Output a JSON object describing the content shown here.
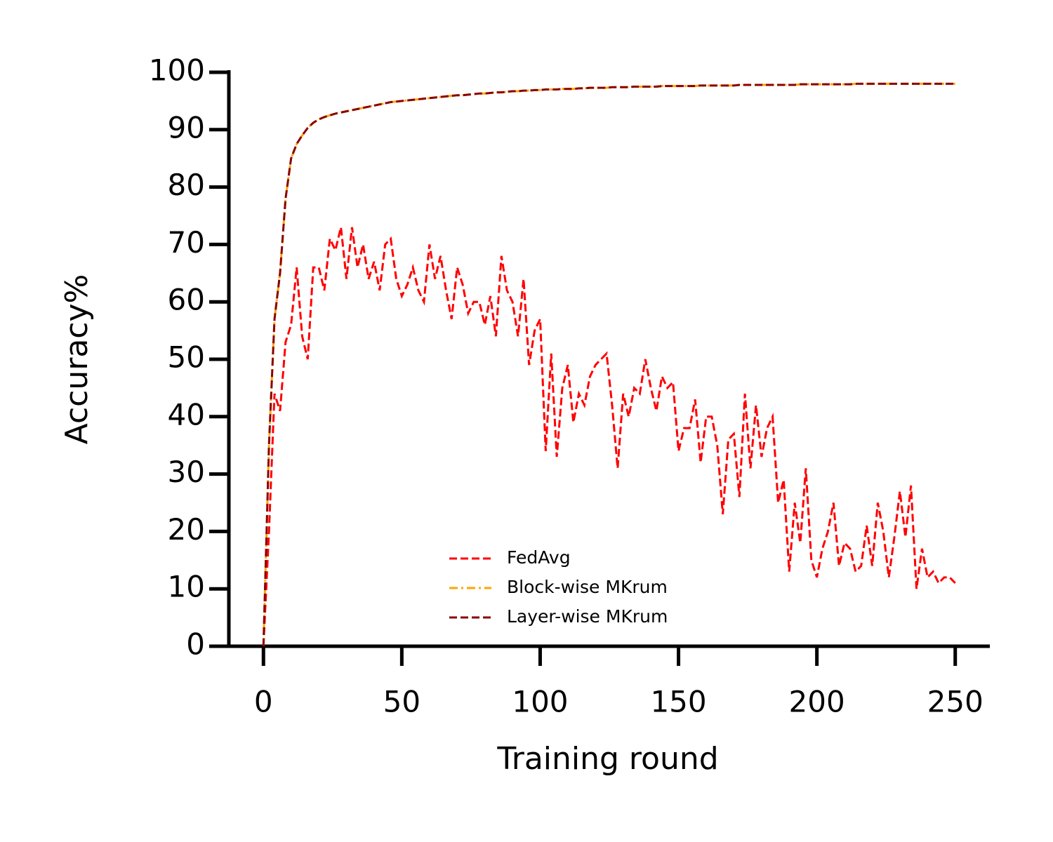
{
  "chart_data": {
    "type": "line",
    "xlabel": "Training round",
    "ylabel": "Accuracy%",
    "xlim": [
      -12.5,
      262.5
    ],
    "xticks": [
      0,
      50,
      100,
      150,
      200,
      250
    ],
    "ylim": [
      0,
      100
    ],
    "yticks": [
      0,
      10,
      20,
      30,
      40,
      50,
      60,
      70,
      80,
      90,
      100
    ],
    "legend": "lower center",
    "x": [
      0,
      2,
      4,
      6,
      8,
      10,
      12,
      14,
      16,
      18,
      20,
      22,
      24,
      26,
      28,
      30,
      32,
      34,
      36,
      38,
      40,
      42,
      44,
      46,
      48,
      50,
      52,
      54,
      56,
      58,
      60,
      62,
      64,
      66,
      68,
      70,
      72,
      74,
      76,
      78,
      80,
      82,
      84,
      86,
      88,
      90,
      92,
      94,
      96,
      98,
      100,
      102,
      104,
      106,
      108,
      110,
      112,
      114,
      116,
      118,
      120,
      122,
      124,
      126,
      128,
      130,
      132,
      134,
      136,
      138,
      140,
      142,
      144,
      146,
      148,
      150,
      152,
      154,
      156,
      158,
      160,
      162,
      164,
      166,
      168,
      170,
      172,
      174,
      176,
      178,
      180,
      182,
      184,
      186,
      188,
      190,
      192,
      194,
      196,
      198,
      200,
      202,
      204,
      206,
      208,
      210,
      212,
      214,
      216,
      218,
      220,
      222,
      224,
      226,
      228,
      230,
      232,
      234,
      236,
      238,
      240,
      242,
      244,
      246,
      248,
      250
    ],
    "series": [
      {
        "name": "FedAvg",
        "color": "#ff0000",
        "linestyle": "dashed",
        "values": [
          0,
          20,
          44,
          41,
          53,
          56,
          66,
          54,
          50,
          66,
          66,
          62,
          71,
          69,
          73,
          64,
          73,
          66,
          70,
          64,
          67,
          62,
          70,
          71,
          64,
          61,
          63,
          66,
          62,
          60,
          70,
          64,
          68,
          62,
          57,
          66,
          63,
          58,
          60,
          60,
          56,
          61,
          54,
          68,
          62,
          60,
          54,
          64,
          49,
          55,
          57,
          34,
          51,
          33,
          45,
          49,
          39,
          44,
          42,
          47,
          49,
          50,
          51,
          42,
          31,
          44,
          40,
          45,
          44,
          50,
          45,
          41,
          47,
          45,
          46,
          34,
          38,
          38,
          43,
          32,
          40,
          40,
          35,
          23,
          36,
          37,
          26,
          44,
          31,
          42,
          33,
          38,
          40,
          25,
          29,
          13,
          25,
          18,
          31,
          15,
          12,
          17,
          20,
          25,
          14,
          18,
          17,
          13,
          14,
          21,
          14,
          25,
          20,
          12,
          19,
          27,
          19,
          28,
          10,
          17,
          12,
          13,
          11,
          12,
          12,
          11
        ]
      },
      {
        "name": "Block-wise MKrum",
        "color": "#ffa500",
        "linestyle": "dashdot",
        "values": [
          0,
          35,
          57,
          65,
          78,
          85,
          87.5,
          89,
          90.3,
          91.2,
          91.8,
          92.2,
          92.5,
          92.8,
          93,
          93.2,
          93.4,
          93.6,
          93.8,
          94,
          94.2,
          94.4,
          94.6,
          94.8,
          94.9,
          95,
          95.1,
          95.2,
          95.3,
          95.4,
          95.5,
          95.6,
          95.7,
          95.8,
          95.9,
          96,
          96,
          96.1,
          96.2,
          96.3,
          96.3,
          96.4,
          96.5,
          96.5,
          96.6,
          96.7,
          96.7,
          96.8,
          96.8,
          96.9,
          96.9,
          97,
          97,
          97,
          97.1,
          97.1,
          97.1,
          97.2,
          97.2,
          97.3,
          97.3,
          97.3,
          97.3,
          97.4,
          97.4,
          97.4,
          97.4,
          97.5,
          97.5,
          97.5,
          97.5,
          97.5,
          97.6,
          97.6,
          97.6,
          97.6,
          97.6,
          97.6,
          97.6,
          97.7,
          97.7,
          97.7,
          97.7,
          97.7,
          97.7,
          97.7,
          97.8,
          97.8,
          97.8,
          97.8,
          97.8,
          97.8,
          97.8,
          97.8,
          97.8,
          97.8,
          97.8,
          97.9,
          97.9,
          97.9,
          97.9,
          97.9,
          97.9,
          97.9,
          97.9,
          97.9,
          97.9,
          98,
          98,
          98,
          98,
          98,
          98,
          98,
          98,
          98,
          98,
          98,
          98,
          98,
          98,
          98,
          98,
          98,
          98,
          98
        ]
      },
      {
        "name": "Layer-wise MKrum",
        "color": "#8b0000",
        "linestyle": "dashed",
        "values": [
          0,
          35,
          57,
          65,
          78,
          85,
          87.5,
          89,
          90.3,
          91.2,
          91.8,
          92.2,
          92.5,
          92.8,
          93,
          93.2,
          93.4,
          93.6,
          93.8,
          94,
          94.2,
          94.4,
          94.6,
          94.8,
          94.9,
          95,
          95.1,
          95.2,
          95.3,
          95.4,
          95.5,
          95.6,
          95.7,
          95.8,
          95.9,
          96,
          96,
          96.1,
          96.2,
          96.3,
          96.3,
          96.4,
          96.5,
          96.5,
          96.6,
          96.7,
          96.7,
          96.8,
          96.8,
          96.9,
          96.9,
          97,
          97,
          97,
          97.1,
          97.1,
          97.1,
          97.2,
          97.2,
          97.3,
          97.3,
          97.3,
          97.3,
          97.4,
          97.4,
          97.4,
          97.4,
          97.5,
          97.5,
          97.5,
          97.5,
          97.5,
          97.6,
          97.6,
          97.6,
          97.6,
          97.6,
          97.6,
          97.6,
          97.7,
          97.7,
          97.7,
          97.7,
          97.7,
          97.7,
          97.7,
          97.8,
          97.8,
          97.8,
          97.8,
          97.8,
          97.8,
          97.8,
          97.8,
          97.8,
          97.8,
          97.8,
          97.9,
          97.9,
          97.9,
          97.9,
          97.9,
          97.9,
          97.9,
          97.9,
          97.9,
          97.9,
          98,
          98,
          98,
          98,
          98,
          98,
          98,
          98,
          98,
          98,
          98,
          98,
          98,
          98,
          98,
          98,
          98,
          98,
          98
        ]
      }
    ]
  }
}
